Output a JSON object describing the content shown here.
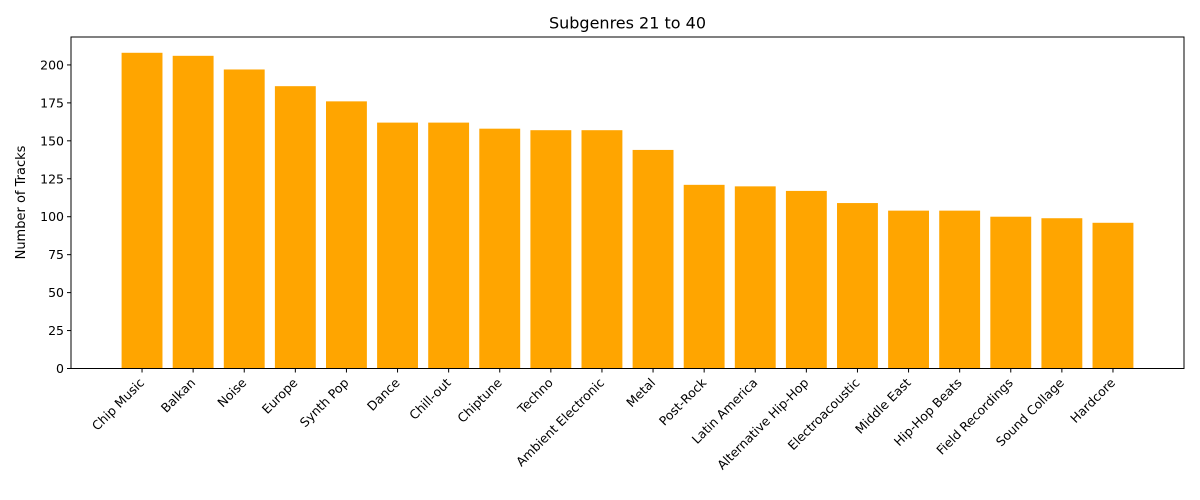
{
  "chart_data": {
    "type": "bar",
    "title": "Subgenres 21 to 40",
    "xlabel": "",
    "ylabel": "Number of Tracks",
    "categories": [
      "Chip Music",
      "Balkan",
      "Noise",
      "Europe",
      "Synth Pop",
      "Dance",
      "Chill-out",
      "Chiptune",
      "Techno",
      "Ambient Electronic",
      "Metal",
      "Post-Rock",
      "Latin America",
      "Alternative Hip-Hop",
      "Electroacoustic",
      "Middle East",
      "Hip-Hop Beats",
      "Field Recordings",
      "Sound Collage",
      "Hardcore"
    ],
    "values": [
      208,
      206,
      197,
      186,
      176,
      162,
      162,
      158,
      157,
      157,
      144,
      121,
      120,
      117,
      109,
      104,
      104,
      100,
      99,
      96
    ],
    "ylim": [
      0,
      218.4
    ],
    "yticks": [
      0,
      25,
      50,
      75,
      100,
      125,
      150,
      175,
      200
    ],
    "bar_color": "#ffa500",
    "grid": false,
    "legend": "none"
  }
}
